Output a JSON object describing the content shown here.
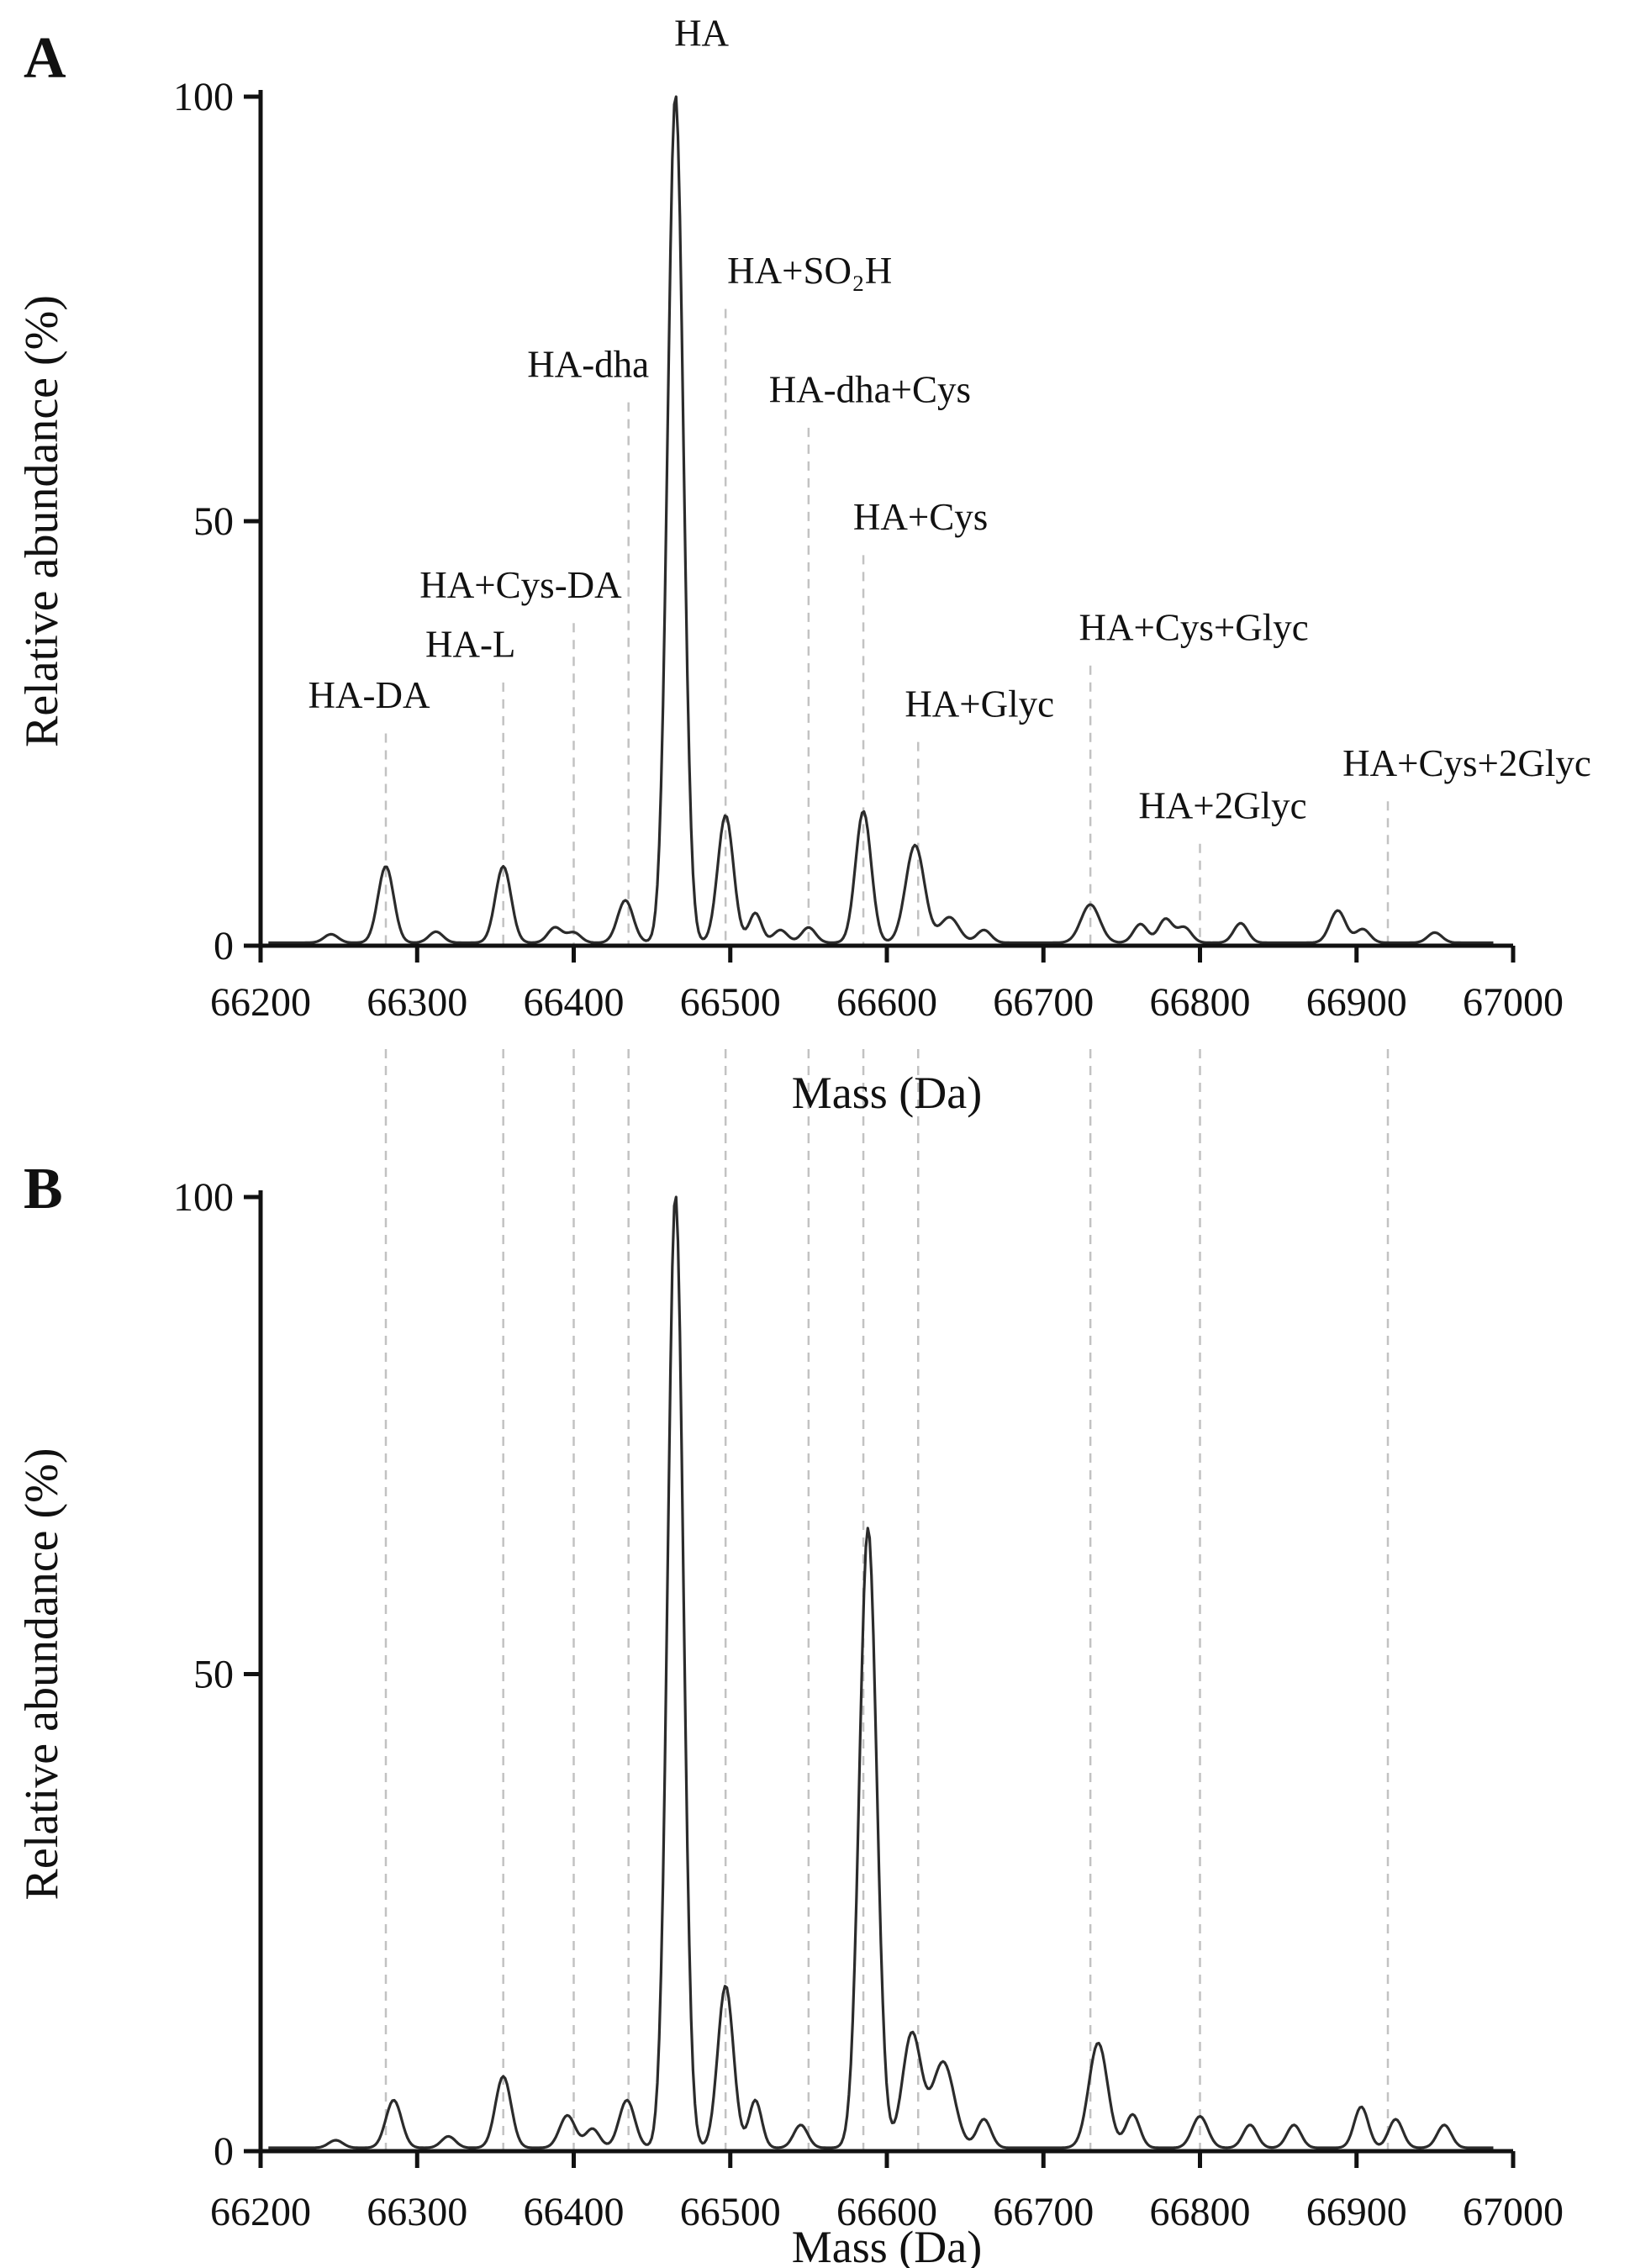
{
  "figure": {
    "x_axis_label": "Mass (Da)",
    "y_axis_label": "Relative abundance (%)",
    "line_color": "#2b2b2b",
    "guide_color": "#c2c2c2",
    "axis_color": "#111111"
  },
  "chart_data": [
    {
      "type": "line",
      "panel": "A",
      "xlabel": "Mass (Da)",
      "ylabel": "Relative abundance (%)",
      "xlim": [
        66200,
        67000
      ],
      "ylim": [
        0,
        100
      ],
      "x_ticks": [
        66200,
        66300,
        66400,
        66500,
        66600,
        66700,
        66800,
        66900,
        67000
      ],
      "y_ticks": [
        0,
        50,
        100
      ],
      "peak_format": "[mass_da, relative_abundance_pct, sigma_da_optional]",
      "peaks": [
        [
          66245,
          1.0
        ],
        [
          66280,
          9,
          5
        ],
        [
          66312,
          1.3
        ],
        [
          66355,
          9,
          5
        ],
        [
          66388,
          1.8
        ],
        [
          66400,
          1.2
        ],
        [
          66433,
          5,
          5
        ],
        [
          66465,
          100,
          5
        ],
        [
          66497,
          15,
          5
        ],
        [
          66516,
          3.5,
          4
        ],
        [
          66532,
          1.5
        ],
        [
          66550,
          1.8
        ],
        [
          66585,
          15.5,
          5
        ],
        [
          66618,
          11.5,
          6
        ],
        [
          66640,
          3,
          6
        ],
        [
          66662,
          1.5
        ],
        [
          66730,
          4.5,
          6
        ],
        [
          66762,
          2.2
        ],
        [
          66778,
          2.8
        ],
        [
          66790,
          1.8
        ],
        [
          66826,
          2.3
        ],
        [
          66888,
          3.8,
          5
        ],
        [
          66904,
          1.6
        ],
        [
          66950,
          1.2
        ]
      ],
      "annotations": [
        {
          "label": "HA-DA",
          "mass": 66280,
          "label_y": 28,
          "dx": -20,
          "guide": true
        },
        {
          "label": "HA-L",
          "mass": 66355,
          "label_y": 34,
          "dx": -39,
          "guide": true
        },
        {
          "label": "HA+Cys-DA",
          "mass": 66400,
          "label_y": 41,
          "dx": -63,
          "guide": true
        },
        {
          "label": "HA-dha",
          "mass": 66435,
          "label_y": 67,
          "dx": -48,
          "guide": true
        },
        {
          "label": "HA",
          "mass": 66465,
          "label_y": 106,
          "dx": 31,
          "guide": false
        },
        {
          "label": "HA+SO₂H",
          "mass": 66497,
          "label_y": 78,
          "dx": 100,
          "guide": true
        },
        {
          "label": "HA-dha+Cys",
          "mass": 66550,
          "label_y": 64,
          "dx": 73,
          "guide": true
        },
        {
          "label": "HA+Cys",
          "mass": 66585,
          "label_y": 49,
          "dx": 68,
          "guide": true
        },
        {
          "label": "HA+Glyc",
          "mass": 66620,
          "label_y": 27,
          "dx": 73,
          "guide": true
        },
        {
          "label": "HA+Cys+Glyc",
          "mass": 66730,
          "label_y": 36,
          "dx": 123,
          "guide": true
        },
        {
          "label": "HA+2Glyc",
          "mass": 66800,
          "label_y": 15,
          "dx": 27,
          "guide": true
        },
        {
          "label": "HA+Cys+2Glyc",
          "mass": 66920,
          "label_y": 20,
          "dx": 94,
          "guide": true
        }
      ]
    },
    {
      "type": "line",
      "panel": "B",
      "xlabel": "Mass (Da)",
      "ylabel": "Relative abundance (%)",
      "xlim": [
        66200,
        67000
      ],
      "ylim": [
        0,
        100
      ],
      "x_ticks": [
        66200,
        66300,
        66400,
        66500,
        66600,
        66700,
        66800,
        66900,
        67000
      ],
      "y_ticks": [
        0,
        50,
        100
      ],
      "peak_format": "[mass_da, relative_abundance_pct, sigma_da_optional]",
      "peaks": [
        [
          66248,
          0.8
        ],
        [
          66285,
          5,
          5
        ],
        [
          66320,
          1.2
        ],
        [
          66355,
          7.5,
          5
        ],
        [
          66396,
          3.4,
          5
        ],
        [
          66412,
          2.0
        ],
        [
          66434,
          5,
          5
        ],
        [
          66465,
          100,
          5
        ],
        [
          66497,
          17,
          5
        ],
        [
          66516,
          5,
          4
        ],
        [
          66545,
          2.4
        ],
        [
          66588,
          65,
          5.5
        ],
        [
          66616,
          12,
          6
        ],
        [
          66636,
          9,
          7
        ],
        [
          66662,
          3.0
        ],
        [
          66735,
          11,
          6
        ],
        [
          66757,
          3.5
        ],
        [
          66800,
          3.3,
          5
        ],
        [
          66832,
          2.4
        ],
        [
          66860,
          2.4
        ],
        [
          66903,
          4.3
        ],
        [
          66925,
          3.0
        ],
        [
          66956,
          2.4
        ]
      ],
      "annotations": [],
      "guide_masses": [
        66280,
        66355,
        66400,
        66435,
        66497,
        66550,
        66585,
        66620,
        66730,
        66800,
        66920
      ]
    }
  ]
}
